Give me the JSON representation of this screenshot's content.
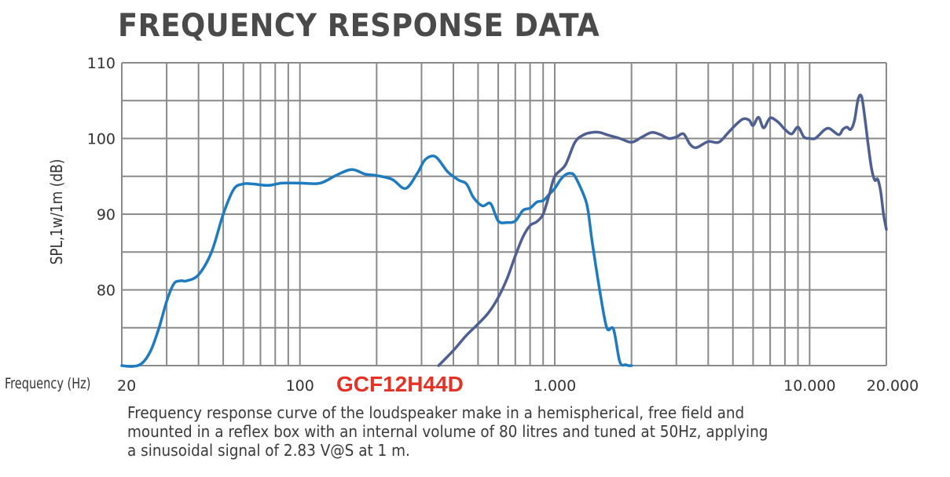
{
  "title": "FREQUENCY RESPONSE DATA",
  "model": "GCF12H44D",
  "caption": [
    "Frequency response curve of the loudspeaker make in a hemispherical, free field and",
    "mounted in a reflex box with an internal volume of 80 litres and tuned at 50Hz, applying",
    "a sinusoidal signal of 2.83 V@S at 1 m."
  ],
  "chart_data": {
    "type": "line",
    "title": "FREQUENCY RESPONSE DATA",
    "xlabel": "Frequency (Hz)",
    "ylabel": "SPL,1w/1m (dB)",
    "x_scale": "log",
    "xlim": [
      20,
      20000
    ],
    "ylim": [
      70,
      110
    ],
    "grid": true,
    "x_tick_labels": [
      "20",
      "100",
      "1.000",
      "10.000",
      "20.000"
    ],
    "x_tick_values": [
      20,
      100,
      1000,
      10000,
      20000
    ],
    "y_tick_labels": [
      "110",
      "100",
      "90",
      "80"
    ],
    "y_tick_values": [
      110,
      100,
      90,
      80
    ],
    "colors": {
      "woofer": "#1f7bbf",
      "tweeter": "#4f5f92",
      "grid": "#8a8a8a",
      "model": "#e53227"
    },
    "series": [
      {
        "color": "#1f7bbf",
        "x": [
          20,
          22,
          24,
          26,
          28,
          30,
          32,
          34,
          36,
          40,
          45,
          50,
          55,
          60,
          65,
          75,
          85,
          100,
          120,
          140,
          160,
          180,
          200,
          230,
          260,
          290,
          310,
          340,
          380,
          420,
          450,
          480,
          520,
          560,
          600,
          650,
          700,
          750,
          800,
          850,
          900,
          950,
          1000,
          1050,
          1100,
          1150,
          1200,
          1300,
          1350,
          1400,
          1500,
          1600,
          1700,
          1800,
          1900,
          1950,
          2000
        ],
        "y": [
          70,
          69.9,
          70.3,
          72,
          75,
          78.5,
          80.8,
          81.2,
          81.2,
          82,
          85,
          90,
          93.3,
          94,
          94,
          93.8,
          94.1,
          94.1,
          94.1,
          95.2,
          95.9,
          95.3,
          95.1,
          94.6,
          93.4,
          95.5,
          97.2,
          97.6,
          95.6,
          94.5,
          94,
          92.2,
          91.1,
          91.4,
          89.1,
          88.9,
          89.1,
          90.5,
          90.8,
          91.6,
          91.8,
          92.6,
          93.4,
          94.5,
          95.2,
          95.4,
          95,
          92.5,
          90.5,
          86.5,
          80,
          75,
          74.8,
          70.5,
          70.1,
          70,
          70
        ]
      },
      {
        "color": "#4f5f92",
        "x": [
          350,
          400,
          450,
          500,
          550,
          600,
          650,
          700,
          750,
          800,
          850,
          900,
          950,
          1000,
          1100,
          1200,
          1300,
          1400,
          1500,
          1600,
          1800,
          2000,
          2200,
          2400,
          2600,
          2800,
          3000,
          3200,
          3400,
          3600,
          4000,
          4400,
          4800,
          5200,
          5500,
          5800,
          6000,
          6300,
          6600,
          7000,
          7500,
          8000,
          8500,
          9000,
          9500,
          10000,
          10500,
          11000,
          11500,
          12000,
          13000,
          13500,
          14000,
          14500,
          15000,
          15500,
          16000,
          16500,
          17000,
          17500,
          18000,
          18500,
          19000,
          19500,
          20000
        ],
        "y": [
          70,
          72,
          74,
          75.5,
          77,
          79,
          81.5,
          84.5,
          87,
          88.5,
          89,
          90,
          92.5,
          95,
          96.5,
          99.5,
          100.5,
          100.8,
          100.8,
          100.5,
          100,
          99.5,
          100.2,
          100.8,
          100.5,
          100,
          100.2,
          100.6,
          99.2,
          98.8,
          99.6,
          99.5,
          100.8,
          102,
          102.6,
          102.4,
          101.7,
          102.8,
          101.4,
          102.7,
          102.2,
          101.2,
          100.6,
          101.5,
          100.2,
          100,
          100,
          100.6,
          101.2,
          101.3,
          100.5,
          101.2,
          101.5,
          101.2,
          102.4,
          105.2,
          105.5,
          102.5,
          99,
          96,
          94.5,
          94.6,
          93,
          90,
          88
        ]
      }
    ]
  }
}
